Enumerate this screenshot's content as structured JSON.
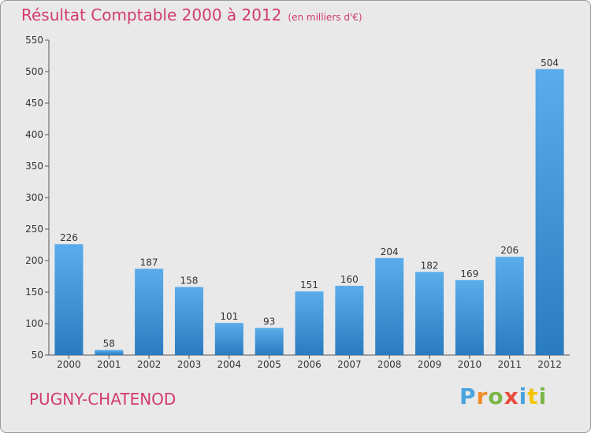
{
  "title": "Résultat Comptable 2000 à 2012",
  "unit": "(en milliers d'€)",
  "town": "PUGNY-CHATENOD",
  "logo": {
    "letters": [
      "P",
      "r",
      "o",
      "x",
      "i",
      "t",
      "i"
    ],
    "colors": [
      "#4aa3df",
      "#f28c28",
      "#7ab648",
      "#e84c3d",
      "#4aa3df",
      "#f5c400",
      "#7ab648"
    ]
  },
  "chart_data": {
    "type": "bar",
    "title": "Résultat Comptable 2000 à 2012",
    "xlabel": "",
    "ylabel": "",
    "categories": [
      "2000",
      "2001",
      "2002",
      "2003",
      "2004",
      "2005",
      "2006",
      "2007",
      "2008",
      "2009",
      "2010",
      "2011",
      "2012"
    ],
    "values": [
      226,
      58,
      187,
      158,
      101,
      93,
      151,
      160,
      204,
      182,
      169,
      206,
      504
    ],
    "ylim": [
      50,
      550
    ],
    "yticks": [
      50,
      100,
      150,
      200,
      250,
      300,
      350,
      400,
      450,
      500,
      550
    ],
    "grid": false,
    "bar_color": "#3d8fd4"
  }
}
